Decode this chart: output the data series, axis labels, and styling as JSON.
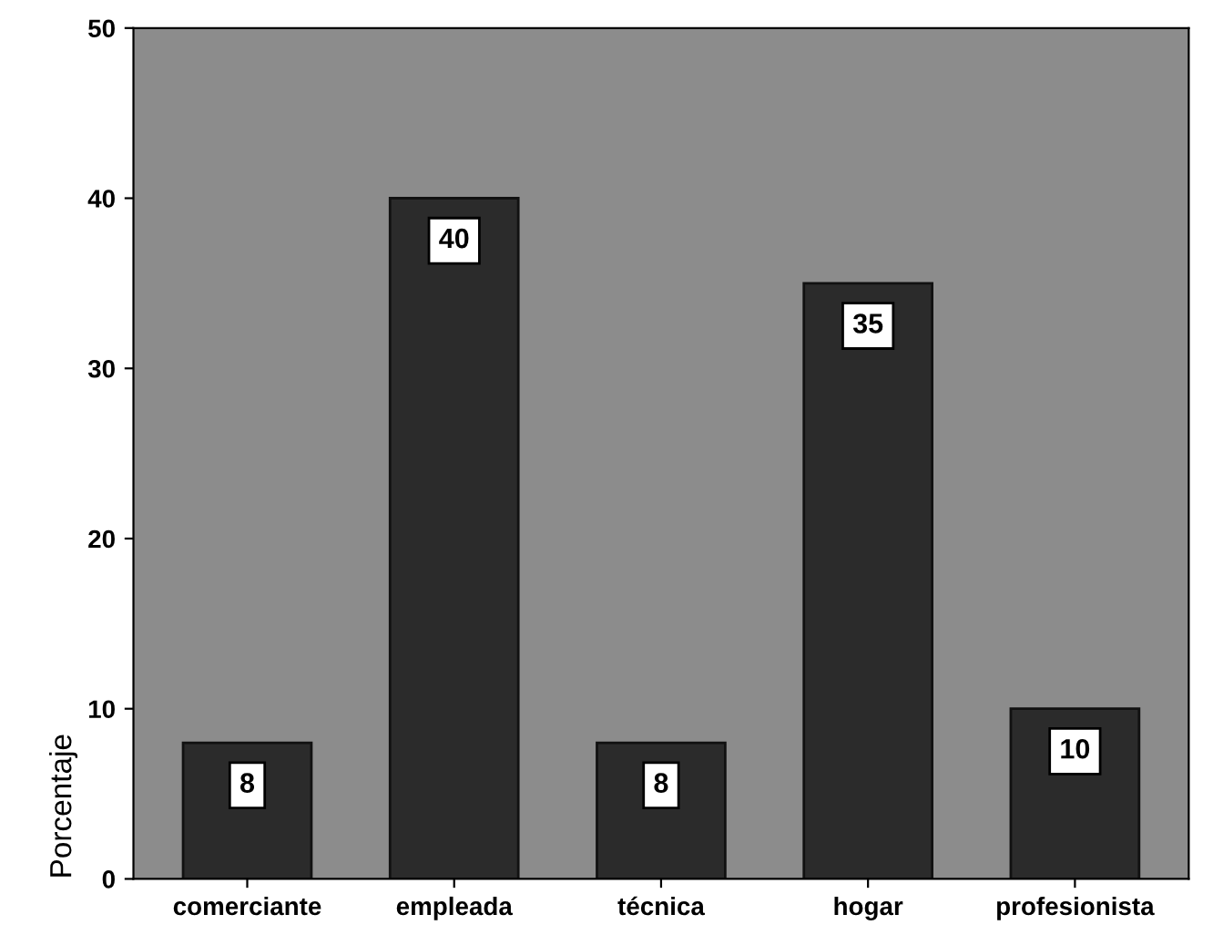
{
  "chart_data": {
    "type": "bar",
    "ylabel": "Porcentaje",
    "categories": [
      "comerciante",
      "empleada",
      "técnica",
      "hogar",
      "profesionista"
    ],
    "values": [
      8,
      40,
      8,
      35,
      10
    ],
    "color": "#2b2b2b",
    "ylim": [
      0,
      50
    ],
    "yticks": [
      0,
      10,
      20,
      30,
      40,
      50
    ],
    "grid": false,
    "data_labels": true
  }
}
